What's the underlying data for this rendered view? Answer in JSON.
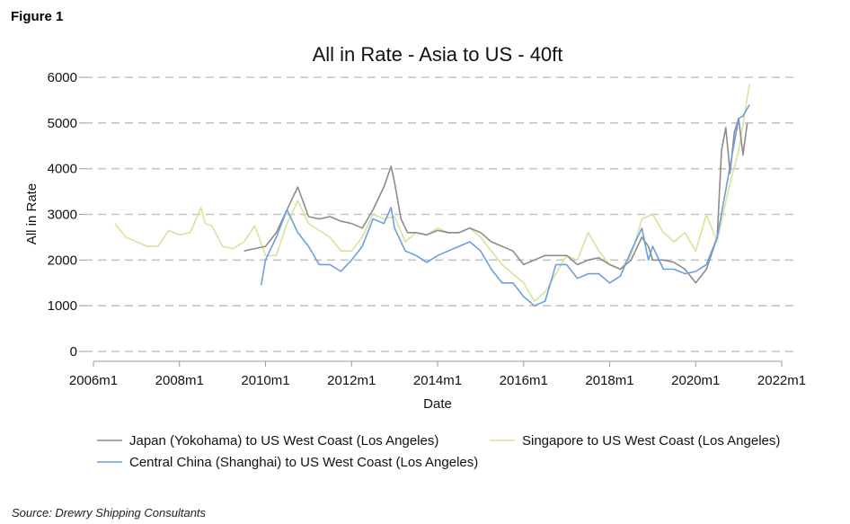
{
  "figure_label": "Figure 1",
  "source": "Source: Drewry Shipping Consultants",
  "chart_data": {
    "type": "line",
    "title": "All in Rate - Asia to US - 40ft",
    "xlabel": "Date",
    "ylabel": "All in Rate",
    "xlim": [
      2006.0,
      2022.0
    ],
    "ylim": [
      0,
      6000
    ],
    "grid": true,
    "legend_position": "bottom",
    "x_ticks": [
      {
        "value": 2006,
        "label": "2006m1"
      },
      {
        "value": 2008,
        "label": "2008m1"
      },
      {
        "value": 2010,
        "label": "2010m1"
      },
      {
        "value": 2012,
        "label": "2012m1"
      },
      {
        "value": 2014,
        "label": "2014m1"
      },
      {
        "value": 2016,
        "label": "2016m1"
      },
      {
        "value": 2018,
        "label": "2018m1"
      },
      {
        "value": 2020,
        "label": "2020m1"
      },
      {
        "value": 2022,
        "label": "2022m1"
      }
    ],
    "y_ticks": [
      0,
      1000,
      2000,
      3000,
      4000,
      5000,
      6000
    ],
    "series": [
      {
        "name": "Japan (Yokohama) to US West Coast (Los Angeles)",
        "color": "#8c8c8c",
        "x": [
          2009.5,
          2009.75,
          2010.0,
          2010.25,
          2010.5,
          2010.75,
          2011.0,
          2011.25,
          2011.5,
          2011.75,
          2012.0,
          2012.25,
          2012.5,
          2012.75,
          2012.92,
          2013.0,
          2013.15,
          2013.3,
          2013.5,
          2013.75,
          2014.0,
          2014.25,
          2014.5,
          2014.75,
          2015.0,
          2015.25,
          2015.5,
          2015.75,
          2016.0,
          2016.25,
          2016.5,
          2016.75,
          2017.0,
          2017.25,
          2017.5,
          2017.75,
          2018.0,
          2018.25,
          2018.5,
          2018.75,
          2018.9,
          2019.0,
          2019.25,
          2019.5,
          2019.75,
          2020.0,
          2020.25,
          2020.5,
          2020.6,
          2020.7,
          2020.8,
          2020.9,
          2021.0,
          2021.1,
          2021.2
        ],
        "y": [
          2200,
          2250,
          2300,
          2600,
          3100,
          3600,
          2950,
          2900,
          2950,
          2850,
          2800,
          2700,
          3100,
          3600,
          4050,
          3700,
          2900,
          2600,
          2600,
          2550,
          2650,
          2600,
          2600,
          2700,
          2600,
          2400,
          2300,
          2200,
          1900,
          2000,
          2100,
          2100,
          2100,
          1900,
          2000,
          2050,
          1900,
          1800,
          2000,
          2500,
          2300,
          2000,
          2000,
          1950,
          1800,
          1500,
          1800,
          2500,
          4400,
          4900,
          3900,
          4800,
          5100,
          4300,
          5000
        ]
      },
      {
        "name": "Singapore to US West Coast (Los Angeles)",
        "color": "#d6e39a",
        "x": [
          2006.5,
          2006.75,
          2007.0,
          2007.25,
          2007.5,
          2007.75,
          2008.0,
          2008.25,
          2008.5,
          2008.6,
          2008.75,
          2009.0,
          2009.25,
          2009.5,
          2009.75,
          2010.0,
          2010.25,
          2010.5,
          2010.75,
          2011.0,
          2011.25,
          2011.5,
          2011.75,
          2012.0,
          2012.25,
          2012.5,
          2012.75,
          2013.0,
          2013.25,
          2013.5,
          2013.75,
          2014.0,
          2014.25,
          2014.5,
          2014.75,
          2015.0,
          2015.25,
          2015.5,
          2015.75,
          2016.0,
          2016.25,
          2016.5,
          2016.75,
          2017.0,
          2017.25,
          2017.5,
          2017.75,
          2018.0,
          2018.25,
          2018.5,
          2018.75,
          2019.0,
          2019.25,
          2019.5,
          2019.75,
          2020.0,
          2020.25,
          2020.5,
          2020.75,
          2021.0,
          2021.25
        ],
        "y": [
          2800,
          2500,
          2400,
          2300,
          2300,
          2650,
          2550,
          2600,
          3150,
          2800,
          2750,
          2300,
          2250,
          2400,
          2750,
          2100,
          2100,
          2800,
          3300,
          2800,
          2650,
          2500,
          2200,
          2200,
          2500,
          3000,
          2900,
          2950,
          2400,
          2600,
          2550,
          2700,
          2600,
          2600,
          2700,
          2500,
          2200,
          1900,
          1700,
          1500,
          1100,
          1300,
          1700,
          2100,
          2000,
          2600,
          2200,
          1900,
          1800,
          2100,
          2900,
          3000,
          2600,
          2400,
          2600,
          2200,
          3000,
          2400,
          3500,
          4400,
          5850
        ]
      },
      {
        "name": "Central China (Shanghai) to US West Coast (Los Angeles)",
        "color": "#6a9fe0",
        "x": [
          2009.9,
          2010.0,
          2010.25,
          2010.5,
          2010.75,
          2011.0,
          2011.25,
          2011.5,
          2011.75,
          2012.0,
          2012.25,
          2012.5,
          2012.75,
          2012.92,
          2013.0,
          2013.25,
          2013.5,
          2013.75,
          2014.0,
          2014.25,
          2014.5,
          2014.75,
          2015.0,
          2015.25,
          2015.5,
          2015.75,
          2016.0,
          2016.25,
          2016.5,
          2016.75,
          2017.0,
          2017.25,
          2017.5,
          2017.75,
          2018.0,
          2018.25,
          2018.5,
          2018.75,
          2018.9,
          2019.0,
          2019.25,
          2019.5,
          2019.75,
          2020.0,
          2020.25,
          2020.5,
          2020.75,
          2021.0,
          2021.1,
          2021.25
        ],
        "y": [
          1450,
          2000,
          2500,
          3100,
          2600,
          2300,
          1900,
          1900,
          1750,
          2000,
          2300,
          2900,
          2800,
          3150,
          2700,
          2200,
          2100,
          1950,
          2100,
          2200,
          2300,
          2400,
          2200,
          1800,
          1500,
          1500,
          1200,
          1000,
          1100,
          1900,
          1900,
          1600,
          1700,
          1700,
          1500,
          1650,
          2200,
          2700,
          2000,
          2300,
          1800,
          1800,
          1700,
          1750,
          1900,
          2500,
          3800,
          5100,
          5150,
          5400
        ]
      }
    ]
  }
}
